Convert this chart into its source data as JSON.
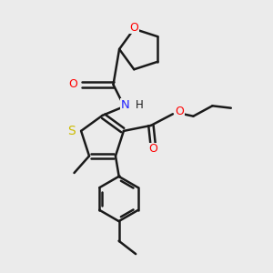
{
  "background_color": "#ebebeb",
  "bond_color": "#1a1a1a",
  "bond_lw": 1.8,
  "atom_colors": {
    "O": "#ff0000",
    "N": "#2222ff",
    "S": "#ccbb00",
    "C": "#1a1a1a"
  },
  "font_size": 9.0,
  "fig_size": [
    3.0,
    3.0
  ],
  "dpi": 100,
  "xlim": [
    0,
    10
  ],
  "ylim": [
    0,
    10
  ]
}
